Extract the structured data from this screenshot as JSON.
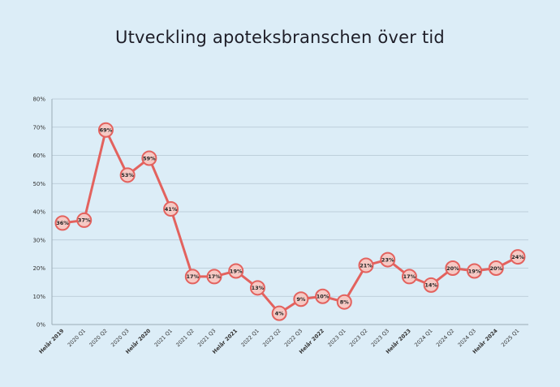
{
  "title": "Utveckling apoteksbranschen över tid",
  "chart_data": {
    "type": "line",
    "title": "Utveckling apoteksbranschen över tid",
    "xlabel": "",
    "ylabel": "",
    "ylim": [
      0,
      80
    ],
    "y_ticks": [
      "0%",
      "10%",
      "20%",
      "30%",
      "40%",
      "50%",
      "60%",
      "70%",
      "80%"
    ],
    "grid": true,
    "categories": [
      "Helår 2019",
      "2020 Q1",
      "2020 Q2",
      "2020 Q3",
      "Helår 2020",
      "2021 Q1",
      "2021 Q2",
      "2021 Q3",
      "Helår 2021",
      "2022 Q1",
      "2022 Q2",
      "2022 Q3",
      "Helår 2022",
      "2023 Q1",
      "2023 Q2",
      "2023 Q3",
      "Helår 2023",
      "2024 Q1",
      "2024 Q2",
      "2024 Q3",
      "Helår 2024",
      "2025 Q1"
    ],
    "bold_categories": [
      "Helår 2019",
      "Helår 2020",
      "Helår 2021",
      "Helår 2022",
      "Helår 2023",
      "Helår 2024"
    ],
    "series": [
      {
        "values": [
          36,
          37,
          69,
          53,
          59,
          41,
          17,
          17,
          19,
          13,
          4,
          9,
          10,
          8,
          21,
          23,
          17,
          14,
          20,
          19,
          20,
          24
        ],
        "labels": [
          "36%",
          "37%",
          "69%",
          "53%",
          "59%",
          "41%",
          "17%",
          "17%",
          "19%",
          "13%",
          "4%",
          "9%",
          "10%",
          "8%",
          "21%",
          "23%",
          "17%",
          "14%",
          "20%",
          "19%",
          "20%",
          "24%"
        ]
      }
    ],
    "colors": {
      "background": "#dcedf7",
      "line": "#e3625e",
      "marker_fill": "#f6c9c4",
      "grid": "#b4c6d2",
      "axis": "#9aaab6"
    }
  }
}
